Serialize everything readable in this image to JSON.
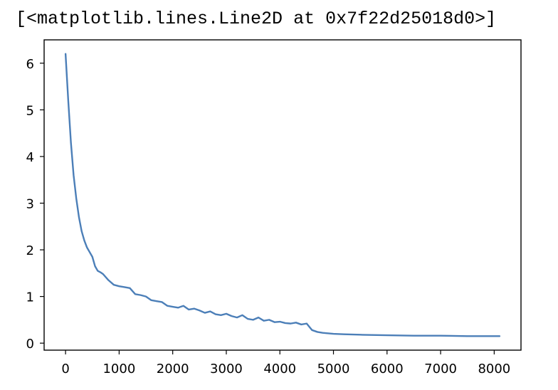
{
  "output_text": "[<matplotlib.lines.Line2D at 0x7f22d25018d0>]",
  "chart_data": {
    "type": "line",
    "title": "",
    "xlabel": "",
    "ylabel": "",
    "xlim": [
      -400,
      8500
    ],
    "ylim": [
      -0.15,
      6.5
    ],
    "xticks": [
      0,
      1000,
      2000,
      3000,
      4000,
      5000,
      6000,
      7000,
      8000
    ],
    "yticks": [
      0,
      1,
      2,
      3,
      4,
      5,
      6
    ],
    "grid": false,
    "color": "#4c7fb8",
    "series": [
      {
        "x": [
          0,
          50,
          100,
          150,
          200,
          250,
          300,
          350,
          400,
          450,
          500,
          550,
          600,
          650,
          700,
          800,
          900,
          1000,
          1100,
          1200,
          1300,
          1400,
          1500,
          1600,
          1700,
          1800,
          1900,
          2000,
          2100,
          2200,
          2300,
          2400,
          2500,
          2600,
          2700,
          2800,
          2900,
          3000,
          3100,
          3200,
          3300,
          3400,
          3500,
          3600,
          3700,
          3800,
          3900,
          4000,
          4100,
          4200,
          4300,
          4400,
          4500,
          4550,
          4600,
          4700,
          4800,
          5000,
          5200,
          5500,
          6000,
          6500,
          7000,
          7500,
          8000,
          8100
        ],
        "y": [
          6.2,
          5.2,
          4.3,
          3.6,
          3.1,
          2.7,
          2.4,
          2.2,
          2.05,
          1.95,
          1.85,
          1.65,
          1.55,
          1.52,
          1.48,
          1.35,
          1.25,
          1.22,
          1.2,
          1.18,
          1.05,
          1.03,
          1.0,
          0.92,
          0.9,
          0.88,
          0.8,
          0.78,
          0.76,
          0.8,
          0.72,
          0.74,
          0.7,
          0.65,
          0.68,
          0.62,
          0.6,
          0.63,
          0.58,
          0.55,
          0.6,
          0.52,
          0.5,
          0.55,
          0.48,
          0.5,
          0.45,
          0.46,
          0.43,
          0.42,
          0.44,
          0.4,
          0.42,
          0.35,
          0.28,
          0.24,
          0.22,
          0.2,
          0.19,
          0.18,
          0.17,
          0.16,
          0.16,
          0.15,
          0.15,
          0.15
        ]
      }
    ]
  }
}
